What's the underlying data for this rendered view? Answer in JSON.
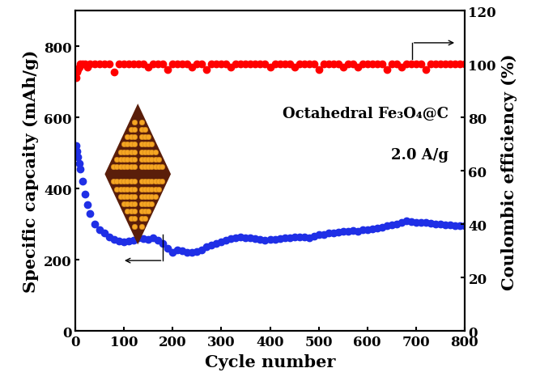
{
  "chart_data": {
    "type": "scatter",
    "x_label": "Cycle number",
    "y_label": "Specific capcaity (mAh/g)",
    "y2_label": "Coulombic efficiency (%)",
    "annotations": [
      "Octahedral Fe₃O₄@C",
      "2.0 A/g"
    ],
    "x": [
      1,
      3,
      5,
      8,
      10,
      15,
      20,
      25,
      30,
      40,
      50,
      60,
      70,
      80,
      90,
      100,
      110,
      120,
      130,
      140,
      150,
      160,
      170,
      180,
      190,
      200,
      210,
      220,
      230,
      240,
      250,
      260,
      270,
      280,
      290,
      300,
      310,
      320,
      330,
      340,
      350,
      360,
      370,
      380,
      390,
      400,
      410,
      420,
      430,
      440,
      450,
      460,
      470,
      480,
      490,
      500,
      510,
      520,
      530,
      540,
      550,
      560,
      570,
      580,
      590,
      600,
      610,
      620,
      630,
      640,
      650,
      660,
      670,
      680,
      690,
      700,
      710,
      720,
      730,
      740,
      750,
      760,
      770,
      780,
      790,
      800
    ],
    "series": [
      {
        "name": "Specific capcaity",
        "color": "#1f2fe6",
        "marker": "circle",
        "line_style": "none",
        "values": [
          520,
          505,
          490,
          470,
          455,
          420,
          385,
          355,
          330,
          300,
          285,
          275,
          265,
          258,
          252,
          250,
          252,
          255,
          262,
          260,
          258,
          262,
          255,
          245,
          232,
          220,
          228,
          225,
          222,
          220,
          224,
          228,
          236,
          242,
          246,
          250,
          255,
          260,
          262,
          265,
          262,
          262,
          260,
          258,
          256,
          258,
          258,
          260,
          262,
          262,
          264,
          265,
          264,
          262,
          266,
          270,
          272,
          275,
          276,
          278,
          280,
          280,
          282,
          280,
          284,
          285,
          288,
          290,
          292,
          295,
          298,
          300,
          304,
          310,
          308,
          305,
          306,
          305,
          302,
          300,
          300,
          298,
          298,
          297,
          296,
          295
        ]
      },
      {
        "name": "Coulombic efficiency",
        "color": "#ff0000",
        "marker": "circle",
        "line_style": "none",
        "axis": "y2",
        "values": [
          95,
          97,
          98,
          99,
          100,
          100,
          100,
          99,
          100,
          100,
          100,
          100,
          100,
          97,
          100,
          100,
          100,
          100,
          100,
          100,
          99,
          100,
          100,
          100,
          98,
          100,
          100,
          100,
          100,
          99,
          100,
          100,
          98,
          100,
          100,
          100,
          100,
          99,
          100,
          100,
          100,
          100,
          100,
          100,
          100,
          99,
          100,
          100,
          100,
          100,
          99,
          100,
          100,
          100,
          100,
          98,
          100,
          100,
          100,
          100,
          99,
          100,
          100,
          99,
          100,
          100,
          100,
          100,
          100,
          98,
          100,
          100,
          99,
          100,
          100,
          100,
          100,
          98,
          100,
          100,
          100,
          100,
          100,
          100,
          100,
          100
        ]
      }
    ],
    "xlim": [
      0,
      800
    ],
    "xticks": [
      0,
      100,
      200,
      300,
      400,
      500,
      600,
      700,
      800
    ],
    "ylim": [
      0,
      900
    ],
    "yticks": [
      0,
      200,
      400,
      600,
      800
    ],
    "y2lim": [
      0,
      120
    ],
    "y2ticks": [
      0,
      20,
      40,
      60,
      80,
      100,
      120
    ],
    "grid": false
  }
}
